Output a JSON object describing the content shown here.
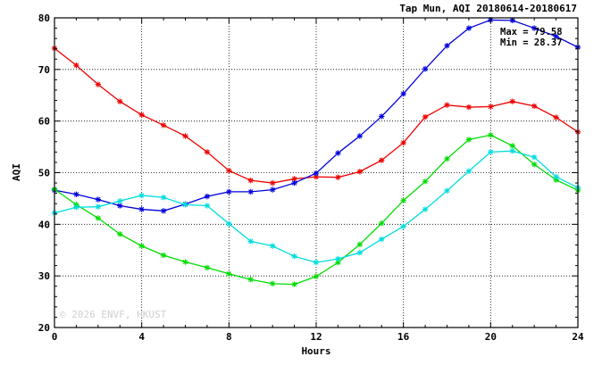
{
  "chart_data": {
    "type": "line",
    "title": "Tap Mun, AQI 20180614-20180617",
    "xlabel": "Hours",
    "ylabel": "AQI",
    "xlim": [
      0,
      24
    ],
    "ylim": [
      20,
      80
    ],
    "xticks": [
      0,
      4,
      8,
      12,
      16,
      20,
      24
    ],
    "yticks": [
      20,
      30,
      40,
      50,
      60,
      70,
      80
    ],
    "grid": true,
    "annotations": [
      "Max = 79.58",
      "Min = 28.37"
    ],
    "watermark": "© 2026  ENVF, HKUST",
    "x": [
      0,
      1,
      2,
      3,
      4,
      5,
      6,
      7,
      8,
      9,
      10,
      11,
      12,
      13,
      14,
      15,
      16,
      17,
      18,
      19,
      20,
      21,
      22,
      23,
      24
    ],
    "series": [
      {
        "color": "#ee0000",
        "values": [
          74.1,
          70.8,
          67.1,
          63.8,
          61.2,
          59.2,
          57.1,
          54.0,
          50.4,
          48.5,
          48.0,
          48.8,
          49.2,
          49.1,
          50.2,
          52.4,
          55.8,
          60.8,
          63.1,
          62.7,
          62.8,
          63.8,
          62.9,
          60.7,
          57.9
        ]
      },
      {
        "color": "#0000dd",
        "values": [
          46.6,
          45.8,
          44.8,
          43.6,
          42.9,
          42.6,
          43.9,
          45.4,
          46.3,
          46.3,
          46.7,
          48.0,
          49.9,
          53.8,
          57.1,
          60.9,
          65.3,
          70.1,
          74.6,
          78.0,
          79.58,
          79.5,
          78.0,
          76.4,
          74.3
        ]
      },
      {
        "color": "#00dd00",
        "values": [
          46.8,
          43.8,
          41.2,
          38.1,
          35.8,
          34.0,
          32.7,
          31.6,
          30.4,
          29.3,
          28.5,
          28.37,
          29.9,
          32.6,
          36.1,
          40.2,
          44.6,
          48.3,
          52.7,
          56.4,
          57.3,
          55.2,
          51.6,
          48.6,
          46.6
        ]
      },
      {
        "color": "#00dddd",
        "values": [
          42.2,
          43.3,
          43.4,
          44.5,
          45.6,
          45.2,
          43.8,
          43.6,
          40.1,
          36.7,
          35.8,
          33.8,
          32.6,
          33.3,
          34.5,
          37.1,
          39.6,
          42.9,
          46.5,
          50.3,
          54.0,
          54.2,
          53.0,
          49.2,
          47.1
        ]
      }
    ]
  }
}
